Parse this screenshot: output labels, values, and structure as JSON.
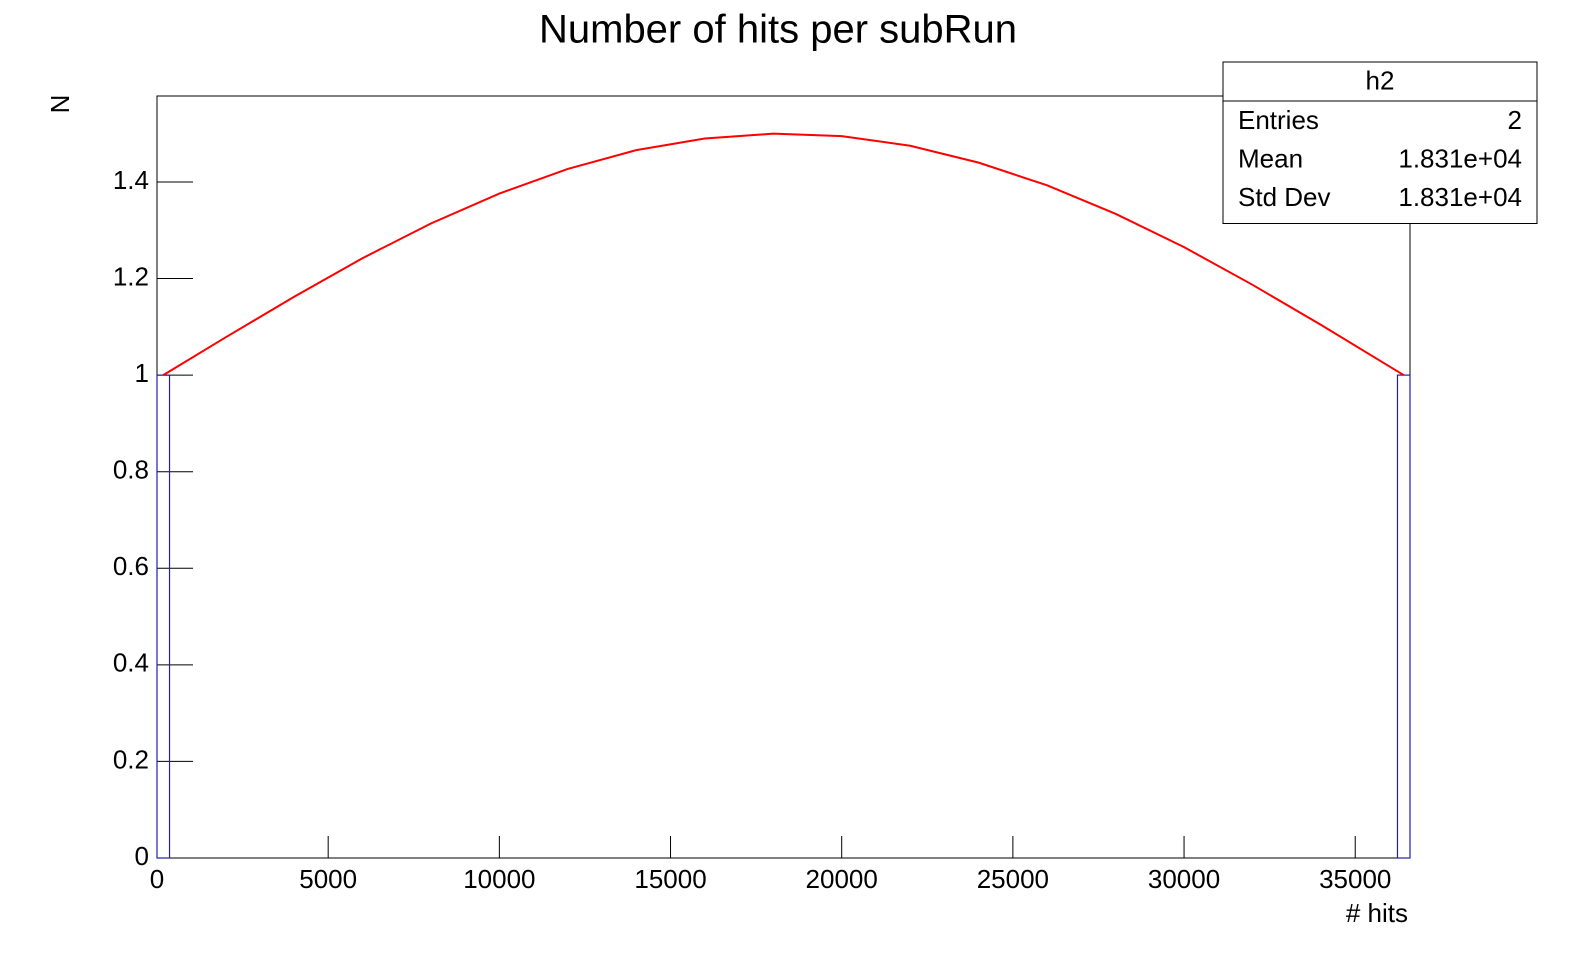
{
  "chart_data": {
    "type": "histogram",
    "title": "Number of hits per subRun",
    "x_label": "# hits",
    "y_label": "N",
    "bins": [
      0,
      366,
      36234,
      36600
    ],
    "counts": [
      1,
      0,
      1
    ],
    "color": "#1f1fb4",
    "xlim": [
      0,
      36600
    ],
    "xticks": [
      0,
      5000,
      10000,
      15000,
      20000,
      25000,
      30000,
      35000
    ],
    "ylim": [
      0,
      1.578
    ],
    "yticks": [
      0,
      0.2,
      0.4,
      0.6,
      0.8,
      1,
      1.2,
      1.4
    ],
    "fit": {
      "color": "#ff0000",
      "x": [
        183,
        2000,
        4000,
        6000,
        8000,
        10000,
        12000,
        14000,
        16000,
        18000,
        20000,
        22000,
        24000,
        26000,
        28000,
        30000,
        32000,
        34000,
        36000,
        36417
      ],
      "values": [
        1,
        1.078,
        1.162,
        1.242,
        1.314,
        1.376,
        1.427,
        1.466,
        1.49,
        1.5,
        1.495,
        1.475,
        1.44,
        1.393,
        1.334,
        1.265,
        1.187,
        1.104,
        1.018,
        1
      ]
    },
    "stats": {
      "title": "h2",
      "rows": [
        [
          "Entries",
          "2"
        ],
        [
          "Mean",
          "1.831e+04"
        ],
        [
          "Std Dev",
          "1.831e+04"
        ]
      ]
    }
  }
}
